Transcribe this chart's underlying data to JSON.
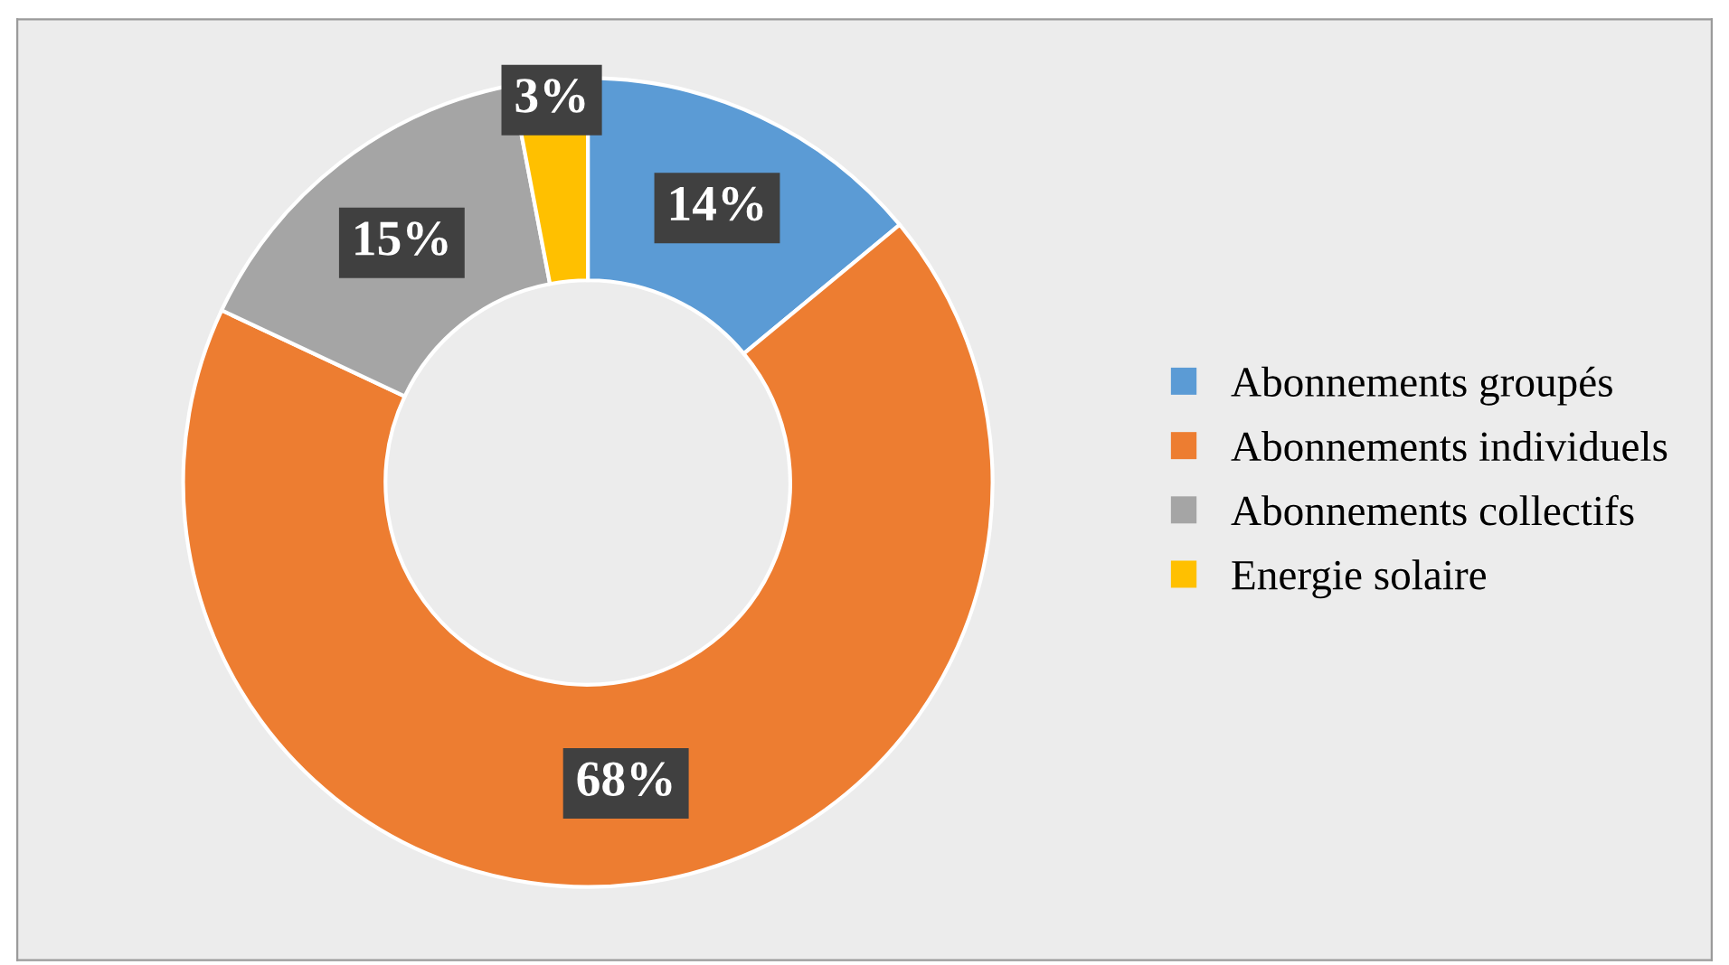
{
  "chart_data": {
    "type": "donut",
    "categories": [
      "Abonnements groupés",
      "Abonnements individuels",
      "Abonnements collectifs",
      "Energie solaire"
    ],
    "values": [
      14,
      68,
      15,
      3
    ],
    "colors": [
      "#5b9bd5",
      "#ed7d31",
      "#a5a5a5",
      "#ffc000"
    ],
    "value_labels": [
      "14%",
      "68%",
      "15%",
      "3%"
    ],
    "legend": "right"
  }
}
